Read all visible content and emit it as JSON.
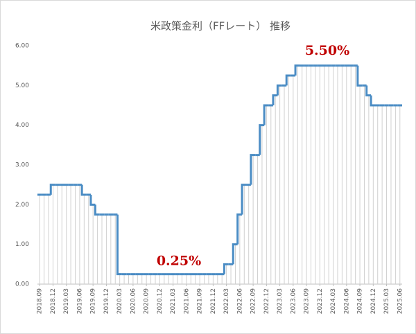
{
  "chart_data": {
    "type": "step-line",
    "title": "米政策金利（FFレート） 推移",
    "categories": [
      "2018.09",
      null,
      null,
      "2018.12",
      null,
      null,
      "2019.03",
      null,
      null,
      "2019.06",
      null,
      null,
      "2019.09",
      null,
      null,
      "2019.12",
      null,
      null,
      "2020.03",
      null,
      null,
      "2020.06",
      null,
      null,
      "2020.09",
      null,
      null,
      "2020.12",
      null,
      null,
      "2021.03",
      null,
      null,
      "2021.06",
      null,
      null,
      "2021.09",
      null,
      null,
      "2021.12",
      null,
      null,
      "2022.03",
      null,
      null,
      "2022.06",
      null,
      null,
      "2022.09",
      null,
      null,
      "2022.12",
      null,
      null,
      "2023.03",
      null,
      null,
      "2023.06",
      null,
      null,
      "2023.09",
      null,
      null,
      "2023.12",
      null,
      null,
      "2024.03",
      null,
      null,
      "2024.06",
      null,
      null,
      "2024.09",
      null,
      null,
      "2024.12",
      null,
      null,
      "2025.03",
      null,
      null,
      "2025.06"
    ],
    "values": [
      2.25,
      2.25,
      2.25,
      2.5,
      2.5,
      2.5,
      2.5,
      2.5,
      2.5,
      2.5,
      2.25,
      2.25,
      2.0,
      1.75,
      1.75,
      1.75,
      1.75,
      1.75,
      0.25,
      0.25,
      0.25,
      0.25,
      0.25,
      0.25,
      0.25,
      0.25,
      0.25,
      0.25,
      0.25,
      0.25,
      0.25,
      0.25,
      0.25,
      0.25,
      0.25,
      0.25,
      0.25,
      0.25,
      0.25,
      0.25,
      0.25,
      0.25,
      0.5,
      0.5,
      1.0,
      1.75,
      2.5,
      2.5,
      3.25,
      3.25,
      4.0,
      4.5,
      4.5,
      4.75,
      5.0,
      5.0,
      5.25,
      5.25,
      5.5,
      5.5,
      5.5,
      5.5,
      5.5,
      5.5,
      5.5,
      5.5,
      5.5,
      5.5,
      5.5,
      5.5,
      5.5,
      5.5,
      5.0,
      5.0,
      4.75,
      4.5,
      4.5,
      4.5,
      4.5,
      4.5,
      4.5,
      4.5
    ],
    "color": "#4a8cc4",
    "ylim": [
      0,
      6
    ],
    "yticks": [
      {
        "value": 0,
        "label": "0.00"
      },
      {
        "value": 1,
        "label": "1.00"
      },
      {
        "value": 2,
        "label": "2.00"
      },
      {
        "value": 3,
        "label": "3.00"
      },
      {
        "value": 4,
        "label": "4.00"
      },
      {
        "value": 5,
        "label": "5.00"
      },
      {
        "value": 6,
        "label": "6.00"
      }
    ],
    "annotations": [
      {
        "text": "5.50%",
        "value": 5.5
      },
      {
        "text": "0.25%",
        "value": 0.25
      }
    ]
  }
}
